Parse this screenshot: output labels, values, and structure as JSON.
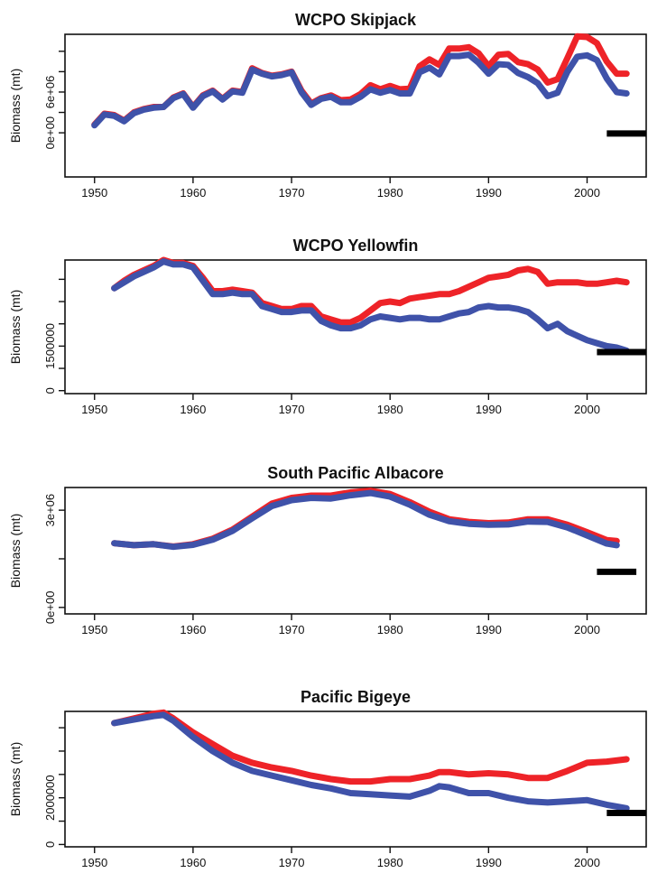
{
  "colors": {
    "red_series": "#ee2328",
    "blue_series": "#3f52a9",
    "reference_bar": "#000000"
  },
  "chart_data": [
    {
      "type": "line",
      "title": "WCPO Skipjack",
      "ylabel": "Biomass (mt)",
      "xlim": [
        1947,
        2006
      ],
      "ylim": [
        -6500000,
        14500000
      ],
      "x_ticks": [
        1950,
        1960,
        1970,
        1980,
        1990,
        2000
      ],
      "x_tick_labels": [
        "1950",
        "1960",
        "1970",
        "1980",
        "1990",
        "2000"
      ],
      "y_ticks": [
        0,
        3000000,
        6000000,
        9000000,
        12000000
      ],
      "y_tick_labels": [
        "0e+00",
        "",
        "6e+06",
        "",
        ""
      ],
      "series": [
        {
          "color": "#ee2328",
          "x": [
            1950,
            1951,
            1952,
            1953,
            1954,
            1955,
            1956,
            1957,
            1958,
            1959,
            1960,
            1961,
            1962,
            1963,
            1964,
            1965,
            1966,
            1967,
            1968,
            1969,
            1970,
            1971,
            1972,
            1973,
            1974,
            1975,
            1976,
            1977,
            1978,
            1979,
            1980,
            1981,
            1982,
            1983,
            1984,
            1985,
            1986,
            1987,
            1988,
            1989,
            1990,
            1991,
            1992,
            1993,
            1994,
            1995,
            1996,
            1997,
            1998,
            1999,
            2000,
            2001,
            2002,
            2003,
            2004
          ],
          "y": [
            1200000,
            2800000,
            2600000,
            1800000,
            3000000,
            3500000,
            3800000,
            3800000,
            5200000,
            5800000,
            3800000,
            5500000,
            6200000,
            5000000,
            6200000,
            6000000,
            9500000,
            8800000,
            8400000,
            8600000,
            9000000,
            6200000,
            4300000,
            5100000,
            5500000,
            4800000,
            4900000,
            5700000,
            7000000,
            6400000,
            6900000,
            6400000,
            6500000,
            9800000,
            10800000,
            10000000,
            12400000,
            12400000,
            12600000,
            11700000,
            9800000,
            11500000,
            11600000,
            10400000,
            10100000,
            9300000,
            7400000,
            7900000,
            11000000,
            14200000,
            14100000,
            13200000,
            10500000,
            8700000,
            8700000
          ]
        },
        {
          "color": "#3f52a9",
          "x": [
            1950,
            1951,
            1952,
            1953,
            1954,
            1955,
            1956,
            1957,
            1958,
            1959,
            1960,
            1961,
            1962,
            1963,
            1964,
            1965,
            1966,
            1967,
            1968,
            1969,
            1970,
            1971,
            1972,
            1973,
            1974,
            1975,
            1976,
            1977,
            1978,
            1979,
            1980,
            1981,
            1982,
            1983,
            1984,
            1985,
            1986,
            1987,
            1988,
            1989,
            1990,
            1991,
            1992,
            1993,
            1994,
            1995,
            1996,
            1997,
            1998,
            1999,
            2000,
            2001,
            2002,
            2003,
            2004
          ],
          "y": [
            1100000,
            2700000,
            2500000,
            1700000,
            2900000,
            3400000,
            3700000,
            3800000,
            5100000,
            5700000,
            3700000,
            5400000,
            6100000,
            4900000,
            6100000,
            5900000,
            9300000,
            8700000,
            8300000,
            8500000,
            8900000,
            6000000,
            4100000,
            5000000,
            5300000,
            4500000,
            4500000,
            5300000,
            6400000,
            5900000,
            6300000,
            5800000,
            5800000,
            8900000,
            9600000,
            8600000,
            11300000,
            11300000,
            11500000,
            10300000,
            8700000,
            10100000,
            10000000,
            8800000,
            8200000,
            7300000,
            5400000,
            5900000,
            9000000,
            11200000,
            11400000,
            10700000,
            8000000,
            6000000,
            5800000
          ]
        }
      ],
      "reference_bar": {
        "x": [
          2002,
          2006
        ],
        "y": -100000
      }
    },
    {
      "type": "line",
      "title": "WCPO Yellowfin",
      "ylabel": "Biomass (mt)",
      "xlim": [
        1947,
        2006
      ],
      "ylim": [
        -100000,
        4400000
      ],
      "x_ticks": [
        1950,
        1960,
        1970,
        1980,
        1990,
        2000
      ],
      "x_tick_labels": [
        "1950",
        "1960",
        "1970",
        "1980",
        "1990",
        "2000"
      ],
      "y_ticks": [
        0,
        750000,
        1500000,
        2250000,
        3000000,
        3750000
      ],
      "y_tick_labels": [
        "0",
        "",
        "1500000",
        "",
        "",
        ""
      ],
      "series": [
        {
          "color": "#ee2328",
          "x": [
            1952,
            1953,
            1954,
            1955,
            1956,
            1957,
            1958,
            1959,
            1960,
            1961,
            1962,
            1963,
            1964,
            1965,
            1966,
            1967,
            1968,
            1969,
            1970,
            1971,
            1972,
            1973,
            1974,
            1975,
            1976,
            1977,
            1978,
            1979,
            1980,
            1981,
            1982,
            1983,
            1984,
            1985,
            1986,
            1987,
            1988,
            1989,
            1990,
            1991,
            1992,
            1993,
            1994,
            1995,
            1996,
            1997,
            1998,
            1999,
            2000,
            2001,
            2002,
            2003,
            2004
          ],
          "y": [
            3450000,
            3700000,
            3900000,
            4050000,
            4200000,
            4400000,
            4300000,
            4300000,
            4200000,
            3800000,
            3350000,
            3350000,
            3400000,
            3350000,
            3300000,
            2950000,
            2850000,
            2750000,
            2750000,
            2850000,
            2850000,
            2500000,
            2400000,
            2300000,
            2300000,
            2450000,
            2700000,
            2950000,
            3000000,
            2950000,
            3100000,
            3150000,
            3200000,
            3250000,
            3250000,
            3350000,
            3500000,
            3650000,
            3800000,
            3850000,
            3900000,
            4050000,
            4100000,
            4000000,
            3600000,
            3650000,
            3650000,
            3650000,
            3600000,
            3600000,
            3650000,
            3700000,
            3650000
          ]
        },
        {
          "color": "#3f52a9",
          "x": [
            1952,
            1953,
            1954,
            1955,
            1956,
            1957,
            1958,
            1959,
            1960,
            1961,
            1962,
            1963,
            1964,
            1965,
            1966,
            1967,
            1968,
            1969,
            1970,
            1971,
            1972,
            1973,
            1974,
            1975,
            1976,
            1977,
            1978,
            1979,
            1980,
            1981,
            1982,
            1983,
            1984,
            1985,
            1986,
            1987,
            1988,
            1989,
            1990,
            1991,
            1992,
            1993,
            1994,
            1995,
            1996,
            1997,
            1998,
            1999,
            2000,
            2001,
            2002,
            2003,
            2004
          ],
          "y": [
            3450000,
            3650000,
            3850000,
            4000000,
            4150000,
            4350000,
            4250000,
            4250000,
            4150000,
            3700000,
            3250000,
            3250000,
            3300000,
            3250000,
            3250000,
            2850000,
            2750000,
            2650000,
            2650000,
            2700000,
            2700000,
            2350000,
            2200000,
            2100000,
            2100000,
            2200000,
            2400000,
            2500000,
            2450000,
            2400000,
            2450000,
            2450000,
            2400000,
            2400000,
            2500000,
            2600000,
            2650000,
            2800000,
            2850000,
            2800000,
            2800000,
            2750000,
            2650000,
            2400000,
            2100000,
            2250000,
            2000000,
            1850000,
            1700000,
            1600000,
            1500000,
            1450000,
            1350000
          ]
        }
      ],
      "reference_bar": {
        "x": [
          2001,
          2006
        ],
        "y": 1300000
      }
    },
    {
      "type": "line",
      "title": "South Pacific Albacore",
      "ylabel": "Biomass (mt)",
      "xlim": [
        1947,
        2006
      ],
      "ylim": [
        -200000,
        3700000
      ],
      "x_ticks": [
        1950,
        1960,
        1970,
        1980,
        1990,
        2000
      ],
      "x_tick_labels": [
        "1950",
        "1960",
        "1970",
        "1980",
        "1990",
        "2000"
      ],
      "y_ticks": [
        0,
        1500000,
        3000000
      ],
      "y_tick_labels": [
        "0e+00",
        "",
        "3e+06"
      ],
      "series": [
        {
          "color": "#ee2328",
          "x": [
            1952,
            1954,
            1956,
            1958,
            1960,
            1962,
            1964,
            1966,
            1968,
            1970,
            1972,
            1974,
            1976,
            1978,
            1980,
            1982,
            1984,
            1986,
            1988,
            1990,
            1992,
            1994,
            1996,
            1998,
            2000,
            2002,
            2003
          ],
          "y": [
            1980000,
            1920000,
            1950000,
            1880000,
            1950000,
            2120000,
            2400000,
            2800000,
            3200000,
            3380000,
            3450000,
            3450000,
            3550000,
            3600000,
            3500000,
            3250000,
            2950000,
            2720000,
            2640000,
            2600000,
            2620000,
            2720000,
            2720000,
            2550000,
            2320000,
            2080000,
            2050000
          ]
        },
        {
          "color": "#3f52a9",
          "x": [
            1952,
            1954,
            1956,
            1958,
            1960,
            1962,
            1964,
            1966,
            1968,
            1970,
            1972,
            1974,
            1976,
            1978,
            1980,
            1982,
            1984,
            1986,
            1988,
            1990,
            1992,
            1994,
            1996,
            1998,
            2000,
            2002,
            2003
          ],
          "y": [
            1980000,
            1920000,
            1950000,
            1870000,
            1930000,
            2090000,
            2360000,
            2750000,
            3130000,
            3310000,
            3380000,
            3360000,
            3460000,
            3530000,
            3420000,
            3170000,
            2860000,
            2660000,
            2580000,
            2550000,
            2560000,
            2650000,
            2640000,
            2470000,
            2220000,
            1970000,
            1920000
          ]
        }
      ],
      "reference_bar": {
        "x": [
          2001,
          2005
        ],
        "y": 1100000
      }
    },
    {
      "type": "line",
      "title": "Pacific Bigeye",
      "ylabel": "Biomass (mt)",
      "xlim": [
        1947,
        2006
      ],
      "ylim": [
        -100000,
        5700000
      ],
      "x_ticks": [
        1950,
        1960,
        1970,
        1980,
        1990,
        2000
      ],
      "x_tick_labels": [
        "1950",
        "1960",
        "1970",
        "1980",
        "1990",
        "2000"
      ],
      "y_ticks": [
        0,
        1000000,
        2000000,
        3000000,
        4000000,
        5000000
      ],
      "y_tick_labels": [
        "0",
        "",
        "2000000",
        "",
        "",
        ""
      ],
      "series": [
        {
          "color": "#ee2328",
          "x": [
            1952,
            1954,
            1956,
            1957,
            1958,
            1960,
            1962,
            1964,
            1966,
            1968,
            1970,
            1972,
            1974,
            1976,
            1978,
            1980,
            1982,
            1984,
            1985,
            1986,
            1988,
            1990,
            1992,
            1994,
            1996,
            1998,
            2000,
            2002,
            2004
          ],
          "y": [
            5200000,
            5400000,
            5600000,
            5650000,
            5400000,
            4800000,
            4300000,
            3800000,
            3500000,
            3300000,
            3150000,
            2950000,
            2800000,
            2700000,
            2700000,
            2800000,
            2800000,
            2950000,
            3100000,
            3100000,
            3000000,
            3050000,
            3000000,
            2850000,
            2850000,
            3150000,
            3500000,
            3550000,
            3650000
          ]
        },
        {
          "color": "#3f52a9",
          "x": [
            1952,
            1954,
            1956,
            1957,
            1958,
            1960,
            1962,
            1964,
            1966,
            1968,
            1970,
            1972,
            1974,
            1976,
            1978,
            1980,
            1982,
            1984,
            1985,
            1986,
            1988,
            1990,
            1992,
            1994,
            1996,
            1998,
            2000,
            2002,
            2004
          ],
          "y": [
            5200000,
            5350000,
            5500000,
            5550000,
            5300000,
            4600000,
            4000000,
            3500000,
            3150000,
            2950000,
            2750000,
            2550000,
            2400000,
            2200000,
            2150000,
            2100000,
            2050000,
            2300000,
            2500000,
            2450000,
            2200000,
            2200000,
            2000000,
            1850000,
            1800000,
            1850000,
            1900000,
            1700000,
            1550000
          ]
        }
      ],
      "reference_bar": {
        "x": [
          2002,
          2006
        ],
        "y": 1350000
      }
    }
  ]
}
